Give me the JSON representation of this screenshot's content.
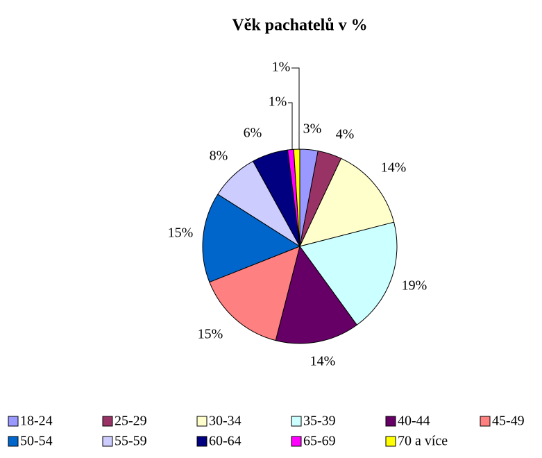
{
  "chart_data": {
    "type": "pie",
    "title": "Věk pachatelů v %",
    "categories": [
      "18-24",
      "25-29",
      "30-34",
      "35-39",
      "40-44",
      "45-49",
      "50-54",
      "55-59",
      "60-64",
      "65-69",
      "70 a více"
    ],
    "values": [
      3,
      4,
      14,
      19,
      14,
      15,
      15,
      8,
      6,
      1,
      1
    ],
    "value_labels": [
      "3%",
      "4%",
      "14%",
      "19%",
      "14%",
      "15%",
      "15%",
      "8%",
      "6%",
      "1%",
      "1%"
    ],
    "colors": [
      "#9999FF",
      "#993366",
      "#FFFFCC",
      "#CCFFFF",
      "#660066",
      "#FF8080",
      "#0066CC",
      "#CCCCFF",
      "#000080",
      "#FF00FF",
      "#FFFF00"
    ],
    "legend": "bottom"
  }
}
